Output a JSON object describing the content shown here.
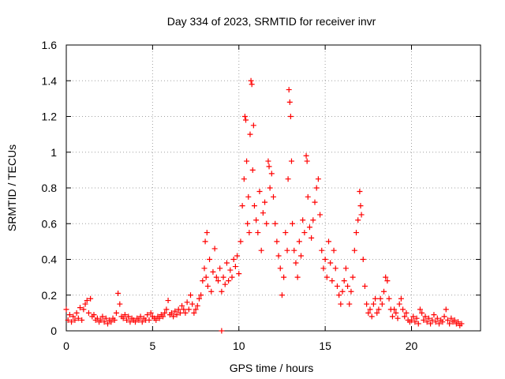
{
  "chart_data": {
    "type": "scatter",
    "title": "Day 334 of 2023, SRMTID for receiver invr",
    "xlabel": "GPS time / hours",
    "ylabel": "SRMTID / TECUs",
    "xlim": [
      0,
      24
    ],
    "ylim": [
      0,
      1.6
    ],
    "xticks": [
      0,
      5,
      10,
      15,
      20
    ],
    "xtick_labels": [
      "0",
      "5",
      "10",
      "15",
      "20"
    ],
    "yticks": [
      0,
      0.2,
      0.4,
      0.6,
      0.8,
      1.0,
      1.2,
      1.4,
      1.6
    ],
    "ytick_labels": [
      "0",
      "0.2",
      "0.4",
      "0.6",
      "0.8",
      "1",
      "1.2",
      "1.4",
      "1.6"
    ],
    "grid": true,
    "marker": "+",
    "color": "#ff0000",
    "series": [
      {
        "name": "SRMTID",
        "points": [
          [
            0.0,
            0.12
          ],
          [
            0.1,
            0.06
          ],
          [
            0.2,
            0.09
          ],
          [
            0.3,
            0.05
          ],
          [
            0.4,
            0.08
          ],
          [
            0.5,
            0.06
          ],
          [
            0.6,
            0.1
          ],
          [
            0.7,
            0.07
          ],
          [
            0.8,
            0.13
          ],
          [
            0.9,
            0.06
          ],
          [
            1.0,
            0.12
          ],
          [
            1.1,
            0.15
          ],
          [
            1.2,
            0.17
          ],
          [
            1.3,
            0.1
          ],
          [
            1.4,
            0.18
          ],
          [
            1.5,
            0.08
          ],
          [
            1.6,
            0.09
          ],
          [
            1.7,
            0.06
          ],
          [
            1.8,
            0.07
          ],
          [
            1.9,
            0.05
          ],
          [
            2.0,
            0.06
          ],
          [
            2.1,
            0.08
          ],
          [
            2.2,
            0.05
          ],
          [
            2.3,
            0.07
          ],
          [
            2.4,
            0.04
          ],
          [
            2.5,
            0.06
          ],
          [
            2.6,
            0.05
          ],
          [
            2.7,
            0.07
          ],
          [
            2.8,
            0.06
          ],
          [
            2.9,
            0.1
          ],
          [
            3.0,
            0.21
          ],
          [
            3.1,
            0.15
          ],
          [
            3.2,
            0.08
          ],
          [
            3.3,
            0.07
          ],
          [
            3.4,
            0.09
          ],
          [
            3.5,
            0.06
          ],
          [
            3.6,
            0.08
          ],
          [
            3.7,
            0.05
          ],
          [
            3.8,
            0.07
          ],
          [
            3.9,
            0.06
          ],
          [
            4.0,
            0.05
          ],
          [
            4.1,
            0.07
          ],
          [
            4.2,
            0.06
          ],
          [
            4.3,
            0.08
          ],
          [
            4.4,
            0.05
          ],
          [
            4.5,
            0.07
          ],
          [
            4.6,
            0.06
          ],
          [
            4.7,
            0.09
          ],
          [
            4.8,
            0.06
          ],
          [
            4.9,
            0.1
          ],
          [
            5.0,
            0.08
          ],
          [
            5.1,
            0.07
          ],
          [
            5.2,
            0.06
          ],
          [
            5.3,
            0.08
          ],
          [
            5.4,
            0.07
          ],
          [
            5.5,
            0.09
          ],
          [
            5.6,
            0.08
          ],
          [
            5.7,
            0.1
          ],
          [
            5.8,
            0.12
          ],
          [
            5.9,
            0.17
          ],
          [
            6.0,
            0.09
          ],
          [
            6.1,
            0.1
          ],
          [
            6.2,
            0.08
          ],
          [
            6.3,
            0.11
          ],
          [
            6.4,
            0.09
          ],
          [
            6.5,
            0.12
          ],
          [
            6.6,
            0.1
          ],
          [
            6.7,
            0.14
          ],
          [
            6.8,
            0.12
          ],
          [
            6.9,
            0.1
          ],
          [
            7.0,
            0.16
          ],
          [
            7.1,
            0.12
          ],
          [
            7.2,
            0.2
          ],
          [
            7.3,
            0.15
          ],
          [
            7.4,
            0.1
          ],
          [
            7.5,
            0.12
          ],
          [
            7.6,
            0.14
          ],
          [
            7.7,
            0.18
          ],
          [
            7.8,
            0.2
          ],
          [
            7.9,
            0.28
          ],
          [
            8.0,
            0.35
          ],
          [
            8.05,
            0.5
          ],
          [
            8.1,
            0.3
          ],
          [
            8.15,
            0.55
          ],
          [
            8.2,
            0.25
          ],
          [
            8.3,
            0.4
          ],
          [
            8.4,
            0.22
          ],
          [
            8.5,
            0.33
          ],
          [
            8.6,
            0.46
          ],
          [
            8.7,
            0.3
          ],
          [
            8.8,
            0.28
          ],
          [
            8.9,
            0.35
          ],
          [
            9.0,
            0.22
          ],
          [
            9.1,
            0.3
          ],
          [
            9.2,
            0.26
          ],
          [
            9.3,
            0.38
          ],
          [
            9.4,
            0.28
          ],
          [
            9.5,
            0.34
          ],
          [
            9.6,
            0.3
          ],
          [
            9.7,
            0.4
          ],
          [
            9.8,
            0.36
          ],
          [
            9.9,
            0.42
          ],
          [
            10.0,
            0.32
          ],
          [
            10.1,
            0.5
          ],
          [
            10.2,
            0.7
          ],
          [
            10.3,
            0.85
          ],
          [
            10.35,
            1.2
          ],
          [
            10.4,
            1.18
          ],
          [
            10.45,
            0.95
          ],
          [
            10.5,
            0.6
          ],
          [
            10.55,
            0.75
          ],
          [
            10.6,
            0.55
          ],
          [
            10.65,
            1.1
          ],
          [
            10.7,
            1.4
          ],
          [
            10.75,
            1.38
          ],
          [
            10.8,
            0.9
          ],
          [
            10.85,
            1.15
          ],
          [
            10.9,
            0.7
          ],
          [
            11.0,
            0.62
          ],
          [
            11.1,
            0.55
          ],
          [
            11.2,
            0.78
          ],
          [
            11.3,
            0.45
          ],
          [
            11.4,
            0.66
          ],
          [
            11.5,
            0.72
          ],
          [
            11.6,
            0.6
          ],
          [
            11.7,
            0.95
          ],
          [
            11.75,
            0.92
          ],
          [
            11.8,
            0.8
          ],
          [
            11.9,
            0.88
          ],
          [
            12.0,
            0.75
          ],
          [
            12.1,
            0.6
          ],
          [
            12.2,
            0.5
          ],
          [
            12.3,
            0.42
          ],
          [
            12.4,
            0.35
          ],
          [
            12.5,
            0.2
          ],
          [
            12.6,
            0.3
          ],
          [
            12.7,
            0.55
          ],
          [
            12.8,
            0.45
          ],
          [
            12.85,
            0.85
          ],
          [
            12.9,
            1.35
          ],
          [
            12.95,
            1.28
          ],
          [
            13.0,
            1.2
          ],
          [
            13.05,
            0.95
          ],
          [
            13.1,
            0.6
          ],
          [
            13.2,
            0.45
          ],
          [
            13.3,
            0.38
          ],
          [
            13.4,
            0.3
          ],
          [
            13.5,
            0.5
          ],
          [
            13.6,
            0.42
          ],
          [
            13.7,
            0.62
          ],
          [
            13.8,
            0.55
          ],
          [
            13.9,
            0.98
          ],
          [
            13.95,
            0.95
          ],
          [
            14.0,
            0.75
          ],
          [
            14.1,
            0.58
          ],
          [
            14.2,
            0.52
          ],
          [
            14.3,
            0.62
          ],
          [
            14.4,
            0.72
          ],
          [
            14.5,
            0.8
          ],
          [
            14.6,
            0.85
          ],
          [
            14.7,
            0.65
          ],
          [
            14.8,
            0.45
          ],
          [
            14.9,
            0.35
          ],
          [
            15.0,
            0.4
          ],
          [
            15.1,
            0.3
          ],
          [
            15.2,
            0.5
          ],
          [
            15.3,
            0.38
          ],
          [
            15.4,
            0.28
          ],
          [
            15.5,
            0.45
          ],
          [
            15.6,
            0.35
          ],
          [
            15.7,
            0.25
          ],
          [
            15.8,
            0.2
          ],
          [
            15.9,
            0.15
          ],
          [
            16.0,
            0.22
          ],
          [
            16.1,
            0.28
          ],
          [
            16.2,
            0.35
          ],
          [
            16.3,
            0.25
          ],
          [
            16.4,
            0.15
          ],
          [
            16.5,
            0.22
          ],
          [
            16.6,
            0.3
          ],
          [
            16.7,
            0.45
          ],
          [
            16.8,
            0.55
          ],
          [
            16.9,
            0.62
          ],
          [
            17.0,
            0.78
          ],
          [
            17.05,
            0.7
          ],
          [
            17.1,
            0.65
          ],
          [
            17.2,
            0.4
          ],
          [
            17.3,
            0.25
          ],
          [
            17.4,
            0.15
          ],
          [
            17.5,
            0.1
          ],
          [
            17.6,
            0.12
          ],
          [
            17.7,
            0.08
          ],
          [
            17.8,
            0.15
          ],
          [
            17.9,
            0.18
          ],
          [
            18.0,
            0.1
          ],
          [
            18.1,
            0.12
          ],
          [
            18.2,
            0.18
          ],
          [
            18.3,
            0.15
          ],
          [
            18.4,
            0.22
          ],
          [
            18.5,
            0.3
          ],
          [
            18.6,
            0.28
          ],
          [
            18.7,
            0.18
          ],
          [
            18.8,
            0.12
          ],
          [
            18.9,
            0.08
          ],
          [
            19.0,
            0.12
          ],
          [
            19.1,
            0.1
          ],
          [
            19.2,
            0.07
          ],
          [
            19.3,
            0.15
          ],
          [
            19.4,
            0.18
          ],
          [
            19.5,
            0.12
          ],
          [
            19.6,
            0.08
          ],
          [
            19.7,
            0.1
          ],
          [
            19.8,
            0.06
          ],
          [
            19.9,
            0.05
          ],
          [
            20.0,
            0.06
          ],
          [
            20.1,
            0.08
          ],
          [
            20.2,
            0.05
          ],
          [
            20.3,
            0.07
          ],
          [
            20.4,
            0.04
          ],
          [
            20.5,
            0.12
          ],
          [
            20.6,
            0.1
          ],
          [
            20.7,
            0.06
          ],
          [
            20.8,
            0.08
          ],
          [
            20.9,
            0.05
          ],
          [
            21.0,
            0.07
          ],
          [
            21.1,
            0.04
          ],
          [
            21.2,
            0.06
          ],
          [
            21.3,
            0.09
          ],
          [
            21.4,
            0.05
          ],
          [
            21.5,
            0.07
          ],
          [
            21.6,
            0.04
          ],
          [
            21.7,
            0.06
          ],
          [
            21.8,
            0.05
          ],
          [
            21.9,
            0.08
          ],
          [
            22.0,
            0.12
          ],
          [
            22.1,
            0.06
          ],
          [
            22.2,
            0.04
          ],
          [
            22.3,
            0.07
          ],
          [
            22.4,
            0.05
          ],
          [
            22.5,
            0.06
          ],
          [
            22.6,
            0.04
          ],
          [
            22.7,
            0.05
          ],
          [
            22.8,
            0.03
          ],
          [
            22.9,
            0.04
          ],
          [
            9.0,
            0.0
          ]
        ]
      }
    ]
  }
}
